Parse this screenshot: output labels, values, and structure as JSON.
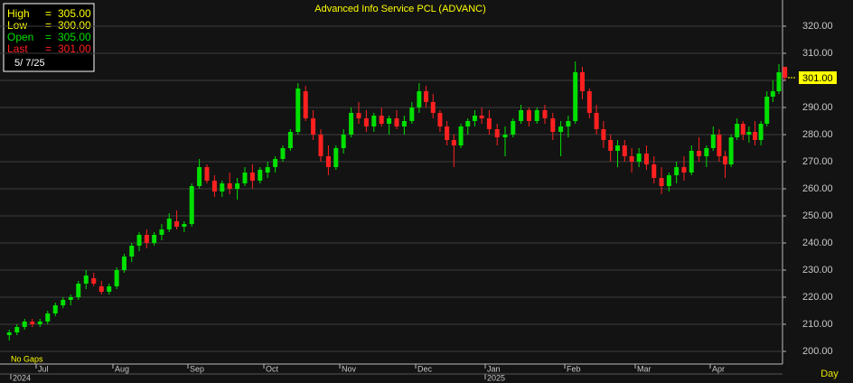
{
  "chart_data": {
    "type": "candlestick",
    "title": "Advanced Info Service PCL (ADVANC)",
    "categories": [
      null,
      "Jul",
      "Aug",
      "Sep",
      "Oct",
      "Nov",
      "Dec",
      "Jan",
      "Feb",
      "Mar",
      "Apr",
      null
    ],
    "years": [
      "2024",
      "2025"
    ],
    "x_unit": "Day",
    "note": "No Gaps",
    "candles": [
      [
        [
          206,
          208,
          204,
          207
        ],
        [
          207,
          210,
          206,
          209
        ],
        [
          209,
          212,
          208,
          211
        ],
        [
          211,
          212,
          209,
          210
        ]
      ],
      [
        [
          210,
          212,
          209,
          211
        ],
        [
          211,
          215,
          210,
          214
        ],
        [
          214,
          218,
          213,
          217
        ],
        [
          217,
          220,
          216,
          219
        ],
        [
          219,
          221,
          217,
          220
        ],
        [
          220,
          226,
          219,
          225
        ],
        [
          225,
          230,
          223,
          228
        ],
        [
          227,
          229,
          224,
          225
        ],
        [
          224,
          226,
          221,
          222
        ],
        [
          222,
          225,
          221,
          224
        ]
      ],
      [
        [
          224,
          231,
          223,
          230
        ],
        [
          230,
          236,
          229,
          235
        ],
        [
          235,
          240,
          233,
          239
        ],
        [
          239,
          244,
          237,
          243
        ],
        [
          243,
          245,
          238,
          240
        ],
        [
          240,
          244,
          239,
          243
        ],
        [
          243,
          247,
          241,
          245
        ],
        [
          245,
          251,
          244,
          249
        ],
        [
          248,
          252,
          245,
          246
        ],
        [
          246,
          248,
          244,
          247
        ]
      ],
      [
        [
          247,
          262,
          246,
          261
        ],
        [
          261,
          271,
          260,
          268
        ],
        [
          268,
          269,
          262,
          263
        ],
        [
          263,
          265,
          257,
          259
        ],
        [
          259,
          263,
          257,
          262
        ],
        [
          262,
          266,
          258,
          260
        ],
        [
          260,
          264,
          256,
          262
        ],
        [
          262,
          268,
          261,
          266
        ],
        [
          266,
          269,
          260,
          263
        ],
        [
          263,
          268,
          262,
          267
        ]
      ],
      [
        [
          266,
          270,
          264,
          268
        ],
        [
          268,
          272,
          266,
          271
        ],
        [
          271,
          276,
          270,
          275
        ],
        [
          275,
          282,
          274,
          281
        ],
        [
          281,
          299,
          280,
          297
        ],
        [
          296,
          298,
          285,
          286
        ],
        [
          286,
          289,
          278,
          280
        ],
        [
          280,
          282,
          270,
          272
        ],
        [
          272,
          276,
          265,
          268
        ],
        [
          268,
          276,
          267,
          275
        ]
      ],
      [
        [
          275,
          282,
          273,
          280
        ],
        [
          280,
          290,
          279,
          288
        ],
        [
          288,
          292,
          284,
          286
        ],
        [
          286,
          289,
          281,
          283
        ],
        [
          283,
          288,
          281,
          287
        ],
        [
          287,
          290,
          283,
          284
        ],
        [
          284,
          287,
          280,
          286
        ],
        [
          286,
          289,
          282,
          283
        ],
        [
          283,
          287,
          280,
          285
        ],
        [
          285,
          292,
          284,
          290
        ]
      ],
      [
        [
          290,
          299,
          288,
          296
        ],
        [
          296,
          298,
          290,
          292
        ],
        [
          292,
          295,
          286,
          288
        ],
        [
          288,
          289,
          281,
          283
        ],
        [
          283,
          285,
          276,
          278
        ],
        [
          278,
          280,
          268,
          276
        ],
        [
          276,
          284,
          275,
          283
        ],
        [
          283,
          286,
          280,
          285
        ],
        [
          285,
          289,
          283,
          287
        ],
        [
          287,
          290,
          284,
          286
        ]
      ],
      [
        [
          286,
          289,
          280,
          282
        ],
        [
          282,
          284,
          276,
          279
        ],
        [
          279,
          283,
          272,
          280
        ],
        [
          280,
          286,
          279,
          285
        ],
        [
          285,
          291,
          284,
          289
        ],
        [
          289,
          290,
          283,
          285
        ],
        [
          285,
          290,
          284,
          289
        ],
        [
          289,
          291,
          284,
          286
        ],
        [
          286,
          288,
          278,
          281
        ],
        [
          281,
          285,
          272,
          283
        ]
      ],
      [
        [
          283,
          287,
          279,
          285
        ],
        [
          285,
          307,
          284,
          303
        ],
        [
          303,
          305,
          293,
          296
        ],
        [
          296,
          297,
          286,
          288
        ],
        [
          288,
          291,
          280,
          282
        ],
        [
          282,
          285,
          275,
          278
        ],
        [
          278,
          280,
          270,
          274
        ],
        [
          274,
          278,
          268,
          276
        ],
        [
          276,
          278,
          270,
          272
        ],
        [
          272,
          275,
          266,
          270
        ]
      ],
      [
        [
          270,
          275,
          268,
          273
        ],
        [
          273,
          276,
          267,
          269
        ],
        [
          269,
          272,
          262,
          264
        ],
        [
          264,
          268,
          258,
          261
        ],
        [
          261,
          266,
          259,
          265
        ],
        [
          265,
          270,
          262,
          268
        ],
        [
          268,
          272,
          263,
          266
        ],
        [
          266,
          276,
          265,
          274
        ],
        [
          274,
          279,
          270,
          272
        ],
        [
          272,
          276,
          268,
          275
        ]
      ],
      [
        [
          275,
          283,
          274,
          280
        ],
        [
          280,
          282,
          270,
          272
        ],
        [
          272,
          274,
          264,
          269
        ],
        [
          269,
          280,
          268,
          279
        ],
        [
          279,
          286,
          278,
          284
        ],
        [
          284,
          285,
          278,
          280
        ],
        [
          280,
          283,
          277,
          281
        ],
        [
          281,
          285,
          276,
          278
        ],
        [
          278,
          285,
          276,
          284
        ],
        [
          284,
          296,
          283,
          294
        ]
      ],
      [
        [
          294,
          300,
          292,
          296
        ],
        [
          296,
          306,
          295,
          303
        ],
        [
          305,
          305,
          300,
          301
        ]
      ]
    ],
    "up_color": "#00e000",
    "down_color": "#ff2020",
    "flat_color": "#e8e800",
    "ylim": [
      195.33,
      329.67
    ],
    "yticks": [
      {
        "value": 200,
        "label": "200.00"
      },
      {
        "value": 210,
        "label": "210.00"
      },
      {
        "value": 220,
        "label": "220.00"
      },
      {
        "value": 230,
        "label": "230.00"
      },
      {
        "value": 240,
        "label": "240.00"
      },
      {
        "value": 250,
        "label": "250.00"
      },
      {
        "value": 260,
        "label": "260.00"
      },
      {
        "value": 270,
        "label": "270.00"
      },
      {
        "value": 280,
        "label": "280.00"
      },
      {
        "value": 290,
        "label": "290.00"
      },
      {
        "value": 300,
        "label": "300.00"
      },
      {
        "value": 310,
        "label": "310.00"
      },
      {
        "value": 320,
        "label": "320.00"
      }
    ],
    "grid": true,
    "last_price": {
      "value": 301,
      "label": "301.00"
    },
    "info_box": {
      "date": "5/ 7/25",
      "rows": [
        {
          "name": "High",
          "value": "305.00",
          "color": "#ffff00"
        },
        {
          "name": "Low",
          "value": "300.00",
          "color": "#ffff00"
        },
        {
          "name": "Open",
          "value": "305.00",
          "color": "#00e000"
        },
        {
          "name": "Last",
          "value": "301.00",
          "color": "#ff2020"
        }
      ]
    }
  }
}
